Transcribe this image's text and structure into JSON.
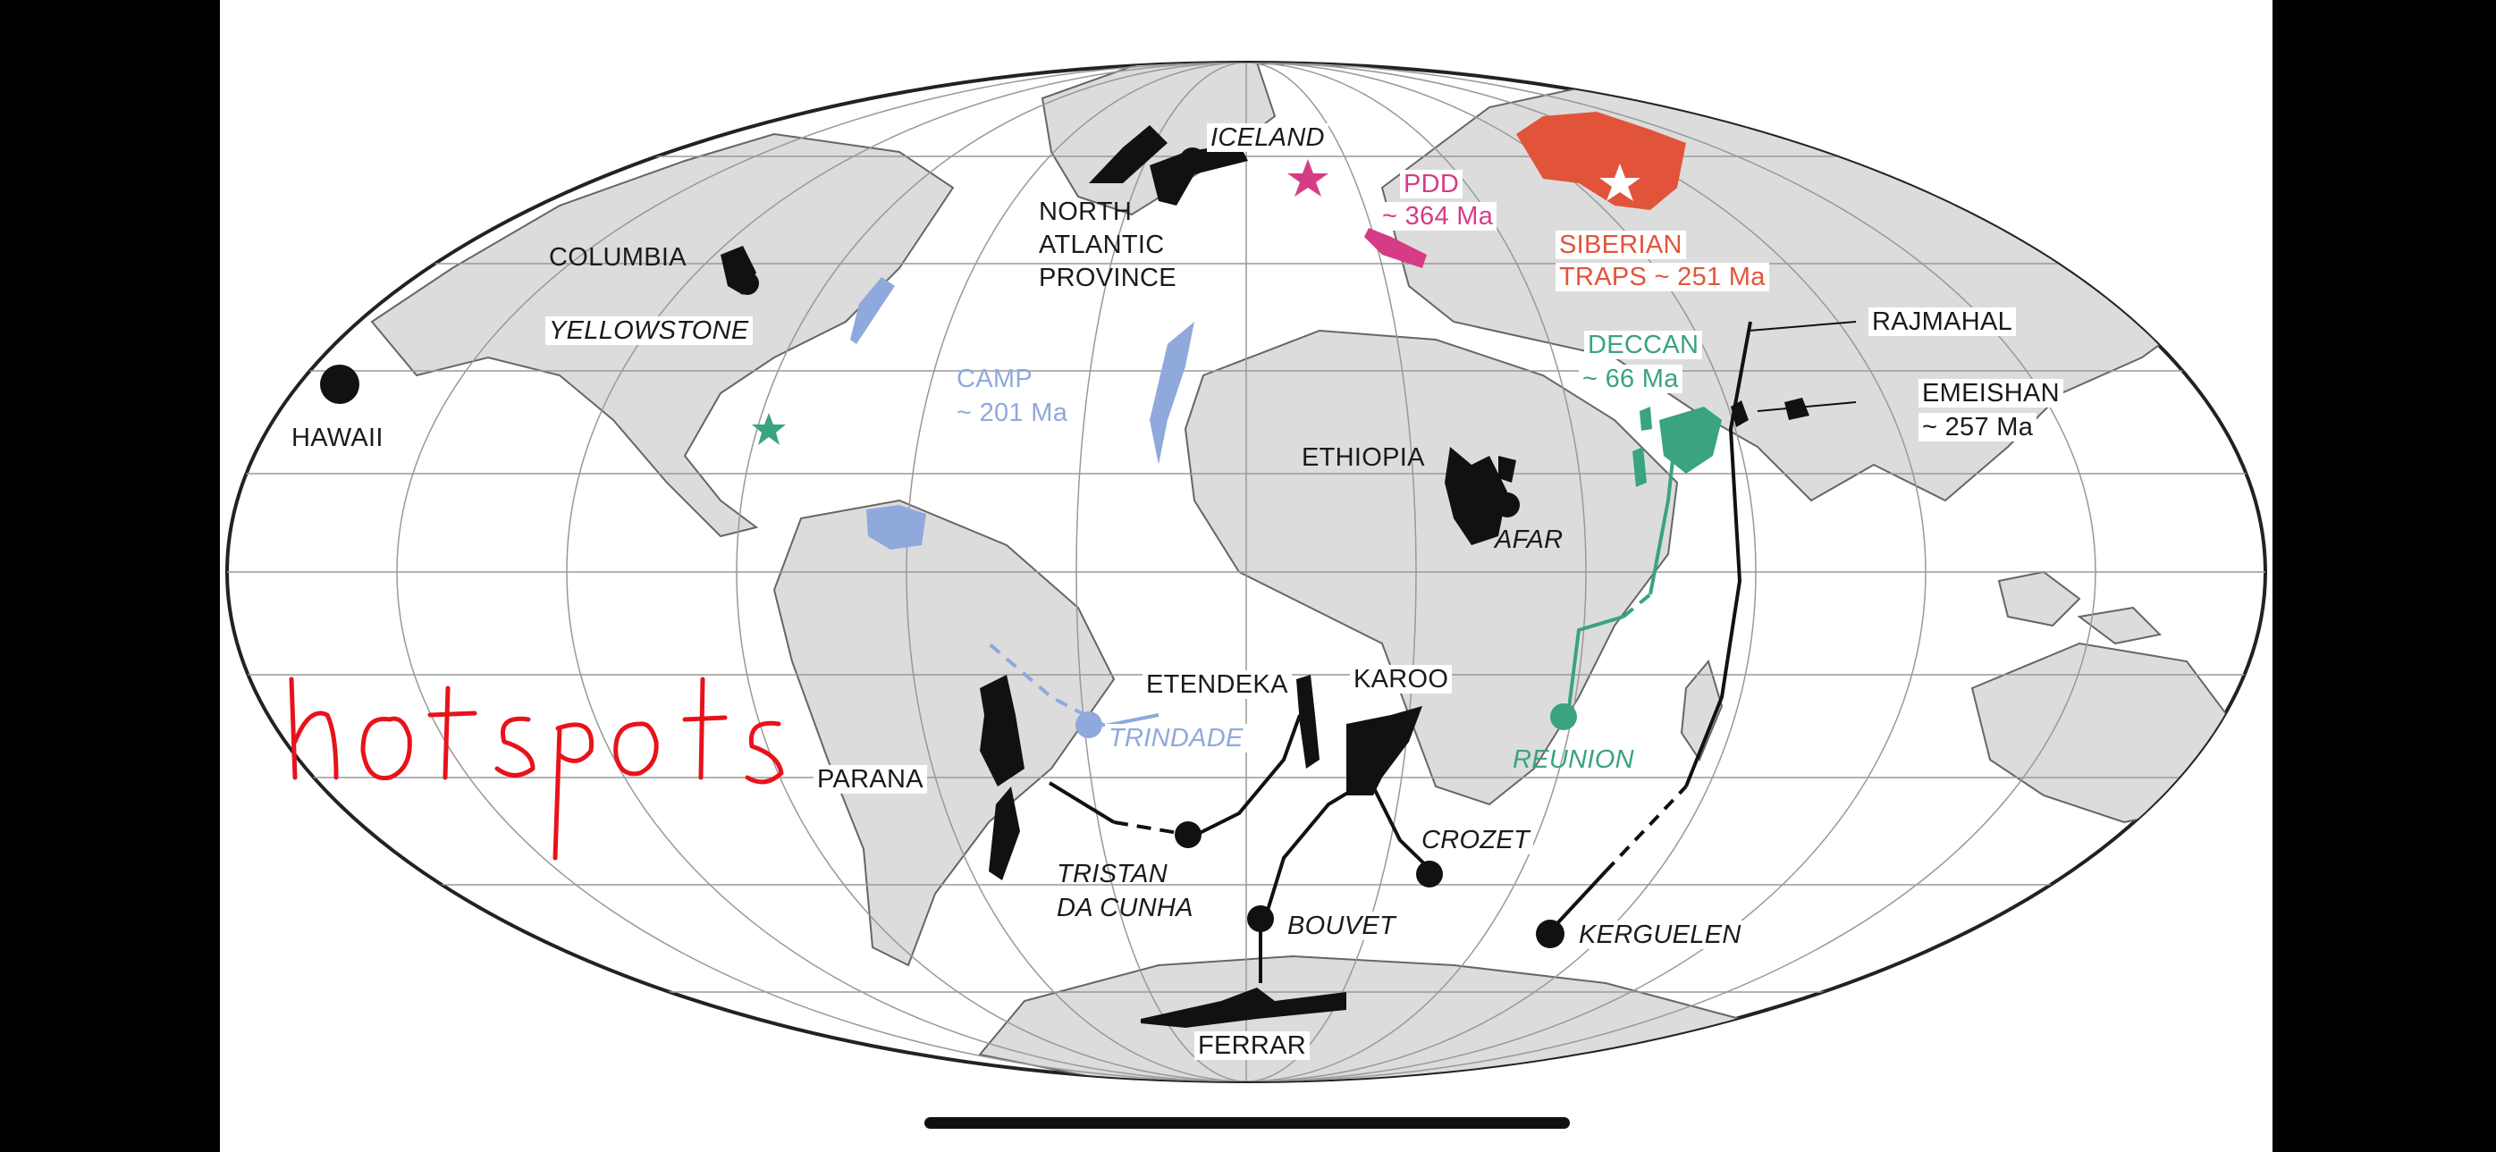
{
  "map": {
    "labels": {
      "iceland": "ICELAND",
      "north_atlantic": [
        "NORTH",
        "ATLANTIC",
        "PROVINCE"
      ],
      "pdd": [
        "PDD",
        "~ 364 Ma"
      ],
      "siberian": [
        "SIBERIAN",
        "TRAPS ~ 251 Ma"
      ],
      "columbia": "COLUMBIA",
      "yellowstone": "YELLOWSTONE",
      "camp": [
        "CAMP",
        "~ 201 Ma"
      ],
      "deccan": [
        "DECCAN",
        "~ 66 Ma"
      ],
      "rajmahal": "RAJMAHAL",
      "emeishan": [
        "EMEISHAN",
        "~ 257 Ma"
      ],
      "hawaii": "HAWAII",
      "ethiopia": "ETHIOPIA",
      "afar": "AFAR",
      "etendeka": "ETENDEKA",
      "karoo": "KAROO",
      "trindade": "TRINDADE",
      "reunion": "REUNION",
      "parana": "PARANA",
      "crozet": "CROZET",
      "tristan": [
        "TRISTAN",
        "DA CUNHA"
      ],
      "bouvet": "BOUVET",
      "kerguelen": "KERGUELEN",
      "ferrar": "FERRAR"
    },
    "handwriting": "hotspots",
    "icons": [
      "hotspot-dot-icon",
      "star-icon"
    ],
    "colors": {
      "black_lip": "#111111",
      "camp_blue": "#8fa9dc",
      "siberian_red": "#e2543a",
      "pdd_pink": "#d63c86",
      "deccan_green": "#3aa37f",
      "handwriting_red": "#e8121b",
      "land": "#dcdcdc",
      "ocean": "#ffffff"
    }
  }
}
